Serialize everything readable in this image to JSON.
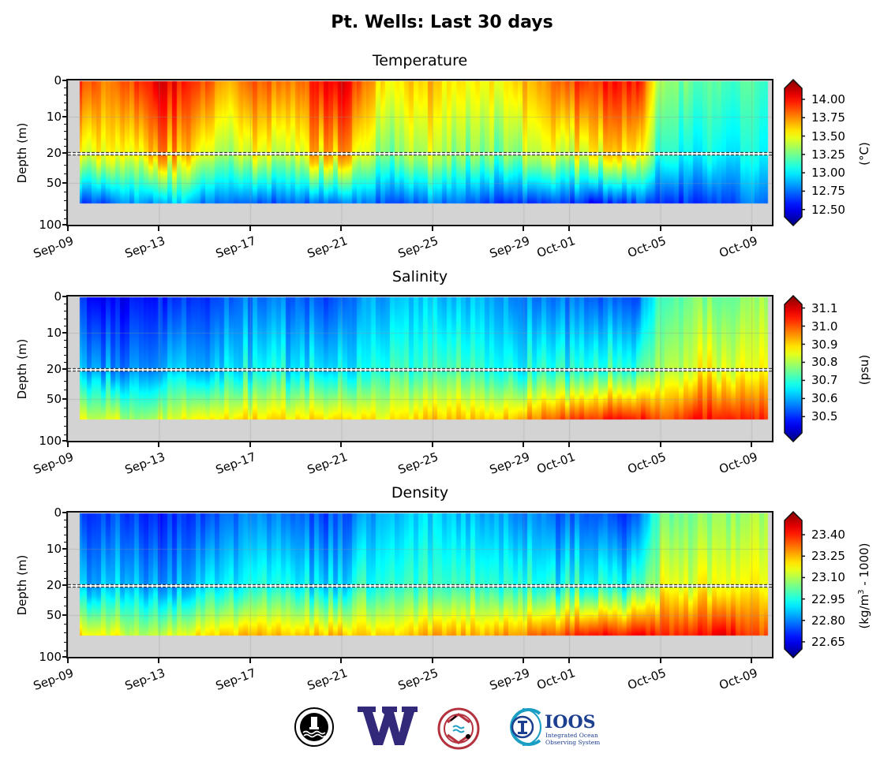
{
  "title": "Pt. Wells: Last 30 days",
  "x_ticks": [
    "Sep-09",
    "Sep-13",
    "Sep-17",
    "Sep-21",
    "Sep-25",
    "Sep-29",
    "Oct-01",
    "Oct-05",
    "Oct-09"
  ],
  "x_tick_days": [
    0,
    4,
    8,
    12,
    16,
    20,
    22,
    26,
    30
  ],
  "y_label": "Depth (m)",
  "y_ticks": [
    "0",
    "10",
    "20",
    "50",
    "100"
  ],
  "y_tick_depths": [
    0,
    10,
    20,
    50,
    100
  ],
  "logos": {
    "logo1": "NORTHWEST ENVIRONMENTAL MOORINGS",
    "logo2": "W",
    "logo4_title": "IOOS",
    "logo4_line1": "Integrated Ocean",
    "logo4_line2": "Observing System"
  },
  "colors": {
    "land_gray": "#d3d3d3",
    "uw_purple": "#32297a",
    "ioos_blue": "#1d3f8f",
    "ioos_teal": "#1a9ec4",
    "coast_red": "#b3323e"
  },
  "chart_data": [
    {
      "type": "heatmap",
      "title": "Temperature",
      "colorbar_label": "(°C)",
      "colorbar_ticks": [
        "14.00",
        "13.75",
        "13.50",
        "13.25",
        "13.00",
        "12.75",
        "12.50"
      ],
      "vmin": 12.4,
      "vmax": 14.15,
      "colorbar_tick_values": [
        14.0,
        13.75,
        13.5,
        13.25,
        13.0,
        12.75,
        12.5
      ],
      "xlabel": "",
      "ylabel": "Depth (m)",
      "x_range_days": [
        0,
        30.9
      ],
      "data_start_day": 0.5,
      "data_end_day": 30.7,
      "data_max_depth": 73,
      "days": [
        "Sep-09",
        "Sep-10",
        "Sep-11",
        "Sep-12",
        "Sep-13",
        "Sep-14",
        "Sep-15",
        "Sep-16",
        "Sep-17",
        "Sep-18",
        "Sep-19",
        "Sep-20",
        "Sep-21",
        "Sep-22",
        "Sep-23",
        "Sep-24",
        "Sep-25",
        "Sep-26",
        "Sep-27",
        "Sep-28",
        "Sep-29",
        "Sep-30",
        "Oct-01",
        "Oct-02",
        "Oct-03",
        "Oct-04",
        "Oct-05",
        "Oct-06",
        "Oct-07",
        "Oct-08",
        "Oct-09"
      ],
      "surface_values": [
        13.9,
        13.8,
        13.7,
        13.85,
        14.0,
        13.9,
        13.8,
        13.6,
        13.8,
        13.75,
        13.7,
        13.9,
        14.0,
        13.7,
        13.5,
        13.6,
        13.6,
        13.5,
        13.55,
        13.5,
        13.6,
        13.7,
        13.8,
        13.85,
        13.9,
        13.9,
        13.3,
        13.25,
        13.2,
        13.2,
        13.2
      ],
      "deep_values": [
        12.7,
        12.75,
        12.8,
        12.9,
        12.9,
        13.0,
        12.8,
        12.8,
        12.8,
        12.75,
        12.8,
        12.8,
        12.85,
        12.8,
        12.75,
        12.8,
        12.85,
        12.8,
        12.8,
        12.7,
        12.7,
        12.75,
        12.7,
        12.65,
        12.7,
        12.75,
        12.65,
        12.7,
        12.7,
        12.75,
        12.85
      ]
    },
    {
      "type": "heatmap",
      "title": "Salinity",
      "colorbar_label": "(psu)",
      "colorbar_ticks": [
        "31.1",
        "31.0",
        "30.9",
        "30.8",
        "30.7",
        "30.6",
        "30.5"
      ],
      "vmin": 30.41,
      "vmax": 31.12,
      "colorbar_tick_values": [
        31.1,
        31.0,
        30.9,
        30.8,
        30.7,
        30.6,
        30.5
      ],
      "xlabel": "",
      "ylabel": "Depth (m)",
      "x_range_days": [
        0,
        30.9
      ],
      "data_start_day": 0.5,
      "data_end_day": 30.7,
      "data_max_depth": 73,
      "days": [
        "Sep-09",
        "Sep-10",
        "Sep-11",
        "Sep-12",
        "Sep-13",
        "Sep-14",
        "Sep-15",
        "Sep-16",
        "Sep-17",
        "Sep-18",
        "Sep-19",
        "Sep-20",
        "Sep-21",
        "Sep-22",
        "Sep-23",
        "Sep-24",
        "Sep-25",
        "Sep-26",
        "Sep-27",
        "Sep-28",
        "Sep-29",
        "Sep-30",
        "Oct-01",
        "Oct-02",
        "Oct-03",
        "Oct-04",
        "Oct-05",
        "Oct-06",
        "Oct-07",
        "Oct-08",
        "Oct-09"
      ],
      "surface_values": [
        30.5,
        30.52,
        30.5,
        30.5,
        30.52,
        30.54,
        30.55,
        30.56,
        30.58,
        30.58,
        30.57,
        30.55,
        30.56,
        30.6,
        30.62,
        30.64,
        30.64,
        30.62,
        30.64,
        30.62,
        30.6,
        30.58,
        30.58,
        30.57,
        30.56,
        30.56,
        30.74,
        30.75,
        30.76,
        30.77,
        30.78
      ],
      "deep_values": [
        30.82,
        30.83,
        30.84,
        30.76,
        30.82,
        30.85,
        30.88,
        30.86,
        30.88,
        30.88,
        30.87,
        30.88,
        30.88,
        30.86,
        30.87,
        30.88,
        30.9,
        30.9,
        30.9,
        30.9,
        30.93,
        30.96,
        30.98,
        31.0,
        31.02,
        31.03,
        30.98,
        31.0,
        31.02,
        31.04,
        31.0
      ]
    },
    {
      "type": "heatmap",
      "title": "Density",
      "colorbar_label_main": "(kg/m",
      "colorbar_label_sup": "3",
      "colorbar_label_end": " - 1000)",
      "colorbar_ticks": [
        "23.40",
        "23.25",
        "23.10",
        "22.95",
        "22.80",
        "22.65"
      ],
      "vmin": 22.6,
      "vmax": 23.5,
      "colorbar_tick_values": [
        23.4,
        23.25,
        23.1,
        22.95,
        22.8,
        22.65
      ],
      "xlabel": "",
      "ylabel": "Depth (m)",
      "x_range_days": [
        0,
        30.9
      ],
      "data_start_day": 0.5,
      "data_end_day": 30.7,
      "data_max_depth": 73,
      "days": [
        "Sep-09",
        "Sep-10",
        "Sep-11",
        "Sep-12",
        "Sep-13",
        "Sep-14",
        "Sep-15",
        "Sep-16",
        "Sep-17",
        "Sep-18",
        "Sep-19",
        "Sep-20",
        "Sep-21",
        "Sep-22",
        "Sep-23",
        "Sep-24",
        "Sep-25",
        "Sep-26",
        "Sep-27",
        "Sep-28",
        "Sep-29",
        "Sep-30",
        "Oct-01",
        "Oct-02",
        "Oct-03",
        "Oct-04",
        "Oct-05",
        "Oct-06",
        "Oct-07",
        "Oct-08",
        "Oct-09"
      ],
      "surface_values": [
        22.76,
        22.78,
        22.78,
        22.76,
        22.74,
        22.76,
        22.78,
        22.8,
        22.82,
        22.82,
        22.8,
        22.78,
        22.78,
        22.84,
        22.88,
        22.9,
        22.9,
        22.88,
        22.88,
        22.86,
        22.84,
        22.82,
        22.8,
        22.78,
        22.78,
        22.78,
        23.02,
        23.04,
        23.06,
        23.06,
        23.08
      ],
      "deep_values": [
        23.2,
        23.18,
        23.16,
        23.1,
        23.12,
        23.14,
        23.2,
        23.2,
        23.22,
        23.22,
        23.2,
        23.22,
        23.22,
        23.2,
        23.2,
        23.22,
        23.24,
        23.24,
        23.24,
        23.25,
        23.28,
        23.3,
        23.34,
        23.36,
        23.38,
        23.4,
        23.34,
        23.36,
        23.38,
        23.4,
        23.32
      ]
    }
  ]
}
